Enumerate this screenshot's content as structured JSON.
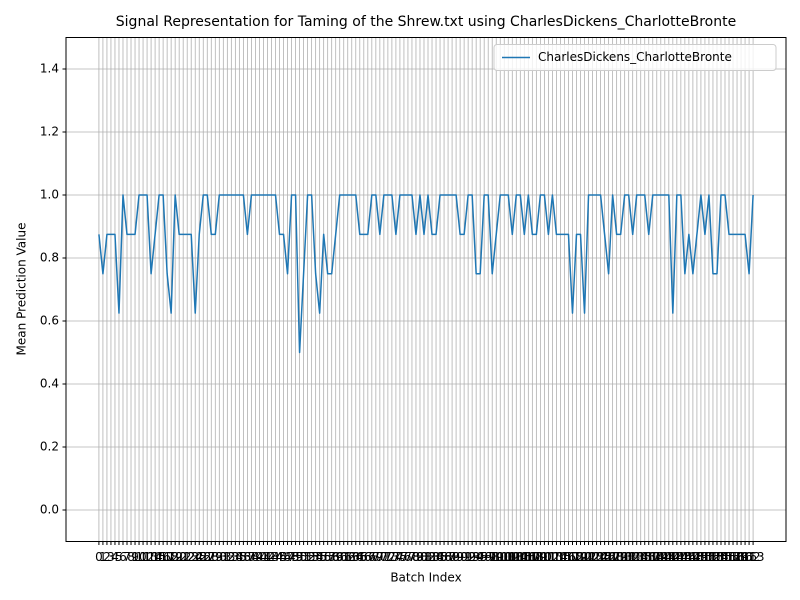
{
  "chart_data": {
    "type": "line",
    "title": "Signal Representation for Taming of the Shrew.txt using CharlesDickens_CharlotteBronte",
    "x_label": "Batch Index",
    "y_label": "Mean Prediction Value",
    "x": [
      0,
      1,
      2,
      3,
      4,
      5,
      6,
      7,
      8,
      9,
      10,
      11,
      12,
      13,
      14,
      15,
      16,
      17,
      18,
      19,
      20,
      21,
      22,
      23,
      24,
      25,
      26,
      27,
      28,
      29,
      30,
      31,
      32,
      33,
      34,
      35,
      36,
      37,
      38,
      39,
      40,
      41,
      42,
      43,
      44,
      45,
      46,
      47,
      48,
      49,
      50,
      51,
      52,
      53,
      54,
      55,
      56,
      57,
      58,
      59,
      60,
      61,
      62,
      63,
      64,
      65,
      66,
      67,
      68,
      69,
      70,
      71,
      72,
      73,
      74,
      75,
      76,
      77,
      78,
      79,
      80,
      81,
      82,
      83,
      84,
      85,
      86,
      87,
      88,
      89,
      90,
      91,
      92,
      93,
      94,
      95,
      96,
      97,
      98,
      99,
      100,
      101,
      102,
      103,
      104,
      105,
      106,
      107,
      108,
      109,
      110,
      111,
      112,
      113,
      114,
      115,
      116,
      117,
      118,
      119,
      120,
      121,
      122,
      123,
      124,
      125,
      126,
      127,
      128,
      129,
      130,
      131,
      132,
      133,
      134,
      135,
      136,
      137,
      138,
      139,
      140,
      141,
      142,
      143,
      144,
      145,
      146,
      147,
      148,
      149,
      150,
      151,
      152,
      153,
      154,
      155,
      156,
      157,
      158,
      159,
      160,
      161,
      162,
      163
    ],
    "series": [
      {
        "name": "CharlesDickens_CharlotteBronte",
        "color": "#1f77b4",
        "values": [
          0.875,
          0.75,
          0.875,
          0.875,
          0.875,
          0.625,
          1.0,
          0.875,
          0.875,
          0.875,
          1.0,
          1.0,
          1.0,
          0.75,
          0.875,
          1.0,
          1.0,
          0.75,
          0.625,
          1.0,
          0.875,
          0.875,
          0.875,
          0.875,
          0.625,
          0.875,
          1.0,
          1.0,
          0.875,
          0.875,
          1.0,
          1.0,
          1.0,
          1.0,
          1.0,
          1.0,
          1.0,
          0.875,
          1.0,
          1.0,
          1.0,
          1.0,
          1.0,
          1.0,
          1.0,
          0.875,
          0.875,
          0.75,
          1.0,
          1.0,
          0.5,
          0.75,
          1.0,
          1.0,
          0.75,
          0.625,
          0.875,
          0.75,
          0.75,
          0.875,
          1.0,
          1.0,
          1.0,
          1.0,
          1.0,
          0.875,
          0.875,
          0.875,
          1.0,
          1.0,
          0.875,
          1.0,
          1.0,
          1.0,
          0.875,
          1.0,
          1.0,
          1.0,
          1.0,
          0.875,
          1.0,
          0.875,
          1.0,
          0.875,
          0.875,
          1.0,
          1.0,
          1.0,
          1.0,
          1.0,
          0.875,
          0.875,
          1.0,
          1.0,
          0.75,
          0.75,
          1.0,
          1.0,
          0.75,
          0.875,
          1.0,
          1.0,
          1.0,
          0.875,
          1.0,
          1.0,
          0.875,
          1.0,
          0.875,
          0.875,
          1.0,
          1.0,
          0.875,
          1.0,
          0.875,
          0.875,
          0.875,
          0.875,
          0.625,
          0.875,
          0.875,
          0.625,
          1.0,
          1.0,
          1.0,
          1.0,
          0.875,
          0.75,
          1.0,
          0.875,
          0.875,
          1.0,
          1.0,
          0.875,
          1.0,
          1.0,
          1.0,
          0.875,
          1.0,
          1.0,
          1.0,
          1.0,
          1.0,
          0.625,
          1.0,
          1.0,
          0.75,
          0.875,
          0.75,
          0.875,
          1.0,
          0.875,
          1.0,
          0.75,
          0.75,
          1.0,
          1.0,
          0.875,
          0.875,
          0.875,
          0.875,
          0.875,
          0.75,
          1.0
        ]
      }
    ],
    "xlim": [
      -8.2,
      171.2
    ],
    "ylim": [
      -0.1,
      1.5
    ],
    "xticks": [
      0,
      1,
      2,
      3,
      4,
      5,
      6,
      7,
      8,
      9,
      10,
      11,
      12,
      13,
      14,
      15,
      16,
      17,
      18,
      19,
      20,
      21,
      22,
      23,
      24,
      25,
      26,
      27,
      28,
      29,
      30,
      31,
      32,
      33,
      34,
      35,
      36,
      37,
      38,
      39,
      40,
      41,
      42,
      43,
      44,
      45,
      46,
      47,
      48,
      49,
      50,
      51,
      52,
      53,
      54,
      55,
      56,
      57,
      58,
      59,
      60,
      61,
      62,
      63,
      64,
      65,
      66,
      67,
      68,
      69,
      70,
      71,
      72,
      73,
      74,
      75,
      76,
      77,
      78,
      79,
      80,
      81,
      82,
      83,
      84,
      85,
      86,
      87,
      88,
      89,
      90,
      91,
      92,
      93,
      94,
      95,
      96,
      97,
      98,
      99,
      100,
      101,
      102,
      103,
      104,
      105,
      106,
      107,
      108,
      109,
      110,
      111,
      112,
      113,
      114,
      115,
      116,
      117,
      118,
      119,
      120,
      121,
      122,
      123,
      124,
      125,
      126,
      127,
      128,
      129,
      130,
      131,
      132,
      133,
      134,
      135,
      136,
      137,
      138,
      139,
      140,
      141,
      142,
      143,
      144,
      145,
      146,
      147,
      148,
      149,
      150,
      151,
      152,
      153,
      154,
      155,
      156,
      157,
      158,
      159,
      160,
      161,
      162,
      163
    ],
    "yticks": [
      {
        "value": 0,
        "label": "0.0"
      },
      {
        "value": 0.2,
        "label": "0.2"
      },
      {
        "value": 0.4,
        "label": "0.4"
      },
      {
        "value": 0.6,
        "label": "0.6"
      },
      {
        "value": 0.8,
        "label": "0.8"
      },
      {
        "value": 1,
        "label": "1.0"
      },
      {
        "value": 1.2,
        "label": "1.2"
      },
      {
        "value": 1.4,
        "label": "1.4"
      }
    ],
    "grid": true,
    "legend": "upper right"
  }
}
